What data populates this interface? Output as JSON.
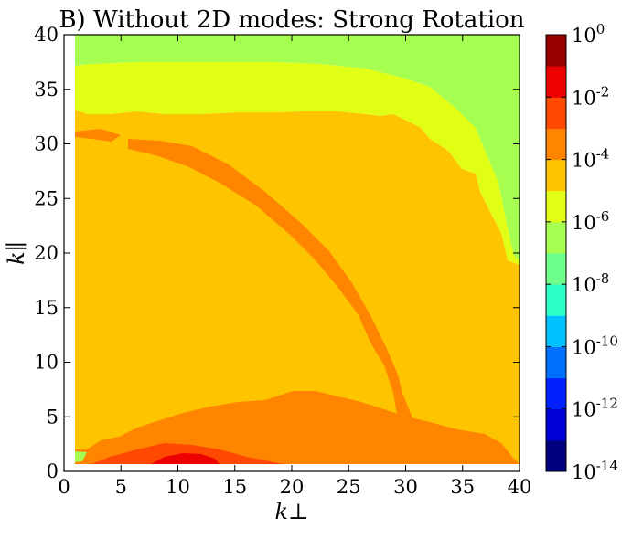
{
  "chart_data": {
    "type": "heatmap",
    "subtype": "filled-contour",
    "title": "B) Without 2D modes: Strong Rotation",
    "xlabel": "k⊥",
    "ylabel": "k∥",
    "xlim": [
      0,
      40
    ],
    "ylim": [
      0,
      40
    ],
    "xticks": [
      "0",
      "5",
      "10",
      "15",
      "20",
      "25",
      "30",
      "35",
      "40"
    ],
    "yticks": [
      "0",
      "5",
      "10",
      "15",
      "20",
      "25",
      "30",
      "35",
      "40"
    ],
    "grid": false,
    "data_extent": {
      "x": [
        1,
        40
      ],
      "y": [
        1,
        40
      ]
    },
    "colorbar": {
      "scale": "log",
      "range_exponents": [
        -14,
        0
      ],
      "level_step_exponent": 1,
      "tick_exponents": [
        0,
        -2,
        -4,
        -6,
        -8,
        -10,
        -12,
        -14
      ],
      "tick_labels": [
        "10^0",
        "10^-2",
        "10^-4",
        "10^-6",
        "10^-8",
        "10^-10",
        "10^-12",
        "10^-14"
      ],
      "colors": [
        "#00007f",
        "#0000d5",
        "#0020ff",
        "#0070ff",
        "#00c0ff",
        "#2dffc9",
        "#6dff89",
        "#a6ff50",
        "#e1ff15",
        "#ffc400",
        "#ff8500",
        "#ff4800",
        "#ed0000",
        "#990000"
      ]
    },
    "regions": [
      {
        "band_exponent": [
          -7,
          -6
        ],
        "color": "#a6ff50",
        "description": "top band, y≈35–40; extends down to y≈20 on right edge"
      },
      {
        "band_exponent": [
          -6,
          -5
        ],
        "color": "#e1ff15",
        "description": "upper band below top; right side from x≈28"
      },
      {
        "band_exponent": [
          -5,
          -4
        ],
        "color": "#ffc400",
        "description": "large central region"
      },
      {
        "band_exponent": [
          -4,
          -3
        ],
        "color": "#ff8500",
        "description": "arc from (5,30) to (30,5) and low-k∥ region y<7"
      },
      {
        "band_exponent": [
          -3,
          -2
        ],
        "color": "#ff4800",
        "description": "near x≈8–22, y≈1–3"
      },
      {
        "band_exponent": [
          -2,
          -1
        ],
        "color": "#ed0000",
        "description": "peak near x≈9–14, y≈1–2"
      }
    ]
  }
}
